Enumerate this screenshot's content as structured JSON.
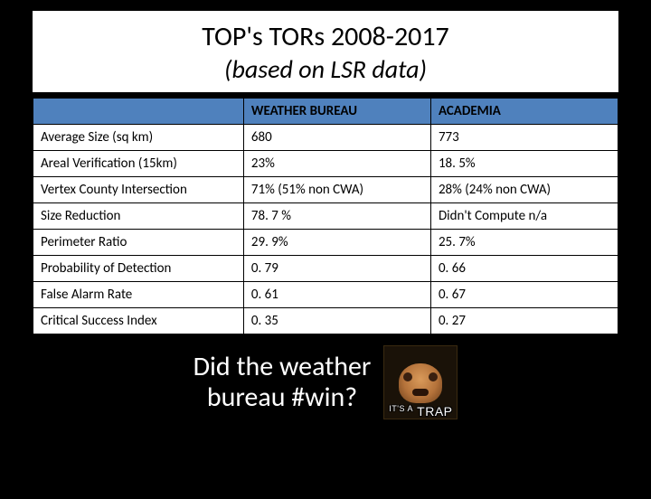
{
  "title": {
    "line1": "TOP's TORs 2008-2017",
    "line2": "(based on LSR data)"
  },
  "table": {
    "type": "table",
    "header_bg": "#4f81bd",
    "cell_bg": "#ffffff",
    "border_color": "#000000",
    "font_size": 15,
    "columns": [
      "",
      "WEATHER BUREAU",
      "ACADEMIA"
    ],
    "rows": [
      {
        "label": "Average Size (sq km)",
        "wb": "680",
        "ac": "773"
      },
      {
        "label": "Areal Verification (15km)",
        "wb": "23%",
        "ac": "18. 5%"
      },
      {
        "label": "Vertex County Intersection",
        "wb": "71% (51% non CWA)",
        "ac": "28% (24% non CWA)"
      },
      {
        "label": "Size Reduction",
        "wb": "78. 7 %",
        "ac": "Didn't Compute  n/a"
      },
      {
        "label": "Perimeter Ratio",
        "wb": "29. 9%",
        "ac": "25. 7%"
      },
      {
        "label": "Probability of Detection",
        "wb": "0. 79",
        "ac": "0. 66"
      },
      {
        "label": "False Alarm Rate",
        "wb": "0. 61",
        "ac": "0. 67"
      },
      {
        "label": "Critical Success Index",
        "wb": "0. 35",
        "ac": "0. 27"
      }
    ]
  },
  "footer": {
    "text_line1": "Did the weather",
    "text_line2": "bureau #win?",
    "trap_prefix": "IT'S A",
    "trap_word": "TRAP"
  },
  "colors": {
    "page_bg": "#000000",
    "title_bg": "#ffffff",
    "footer_text": "#ffffff"
  }
}
